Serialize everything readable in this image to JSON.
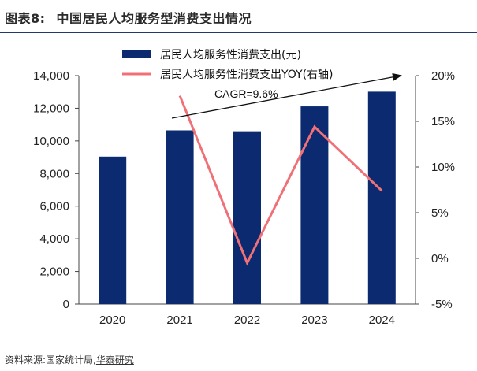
{
  "header": {
    "figure_label": "图表8:",
    "figure_title": "中国居民人均服务型消费支出情况"
  },
  "source": {
    "prefix": "资料来源:国家统计局,",
    "brand": "华泰研究"
  },
  "colors": {
    "bar": "#0b2a6f",
    "line": "#f07078",
    "trend_arrow": "#111111",
    "axis": "#444444"
  },
  "chart_data": {
    "type": "bar+line",
    "categories": [
      "2020",
      "2021",
      "2022",
      "2023",
      "2024"
    ],
    "series": [
      {
        "name": "居民人均服务性消费支出(元)",
        "type": "bar",
        "axis": "left",
        "values": [
          9037,
          10645,
          10590,
          12114,
          13016
        ]
      },
      {
        "name": "居民人均服务性消费支出YOY(右轴)",
        "type": "line",
        "axis": "right",
        "values": [
          null,
          17.8,
          -0.5,
          14.4,
          7.4
        ]
      }
    ],
    "left_axis": {
      "min": 0,
      "max": 14000,
      "step": 2000,
      "tick_labels": [
        "0",
        "2,000",
        "4,000",
        "6,000",
        "8,000",
        "10,000",
        "12,000",
        "14,000"
      ]
    },
    "right_axis": {
      "min": -5,
      "max": 20,
      "step": 5,
      "tick_labels": [
        "-5%",
        "0%",
        "5%",
        "10%",
        "15%",
        "20%"
      ]
    },
    "annotation": {
      "text": "CAGR=9.6%",
      "arrow": "trend arrow rising from 2021 to 2024"
    },
    "legend_position": "top-center",
    "grid": false
  }
}
